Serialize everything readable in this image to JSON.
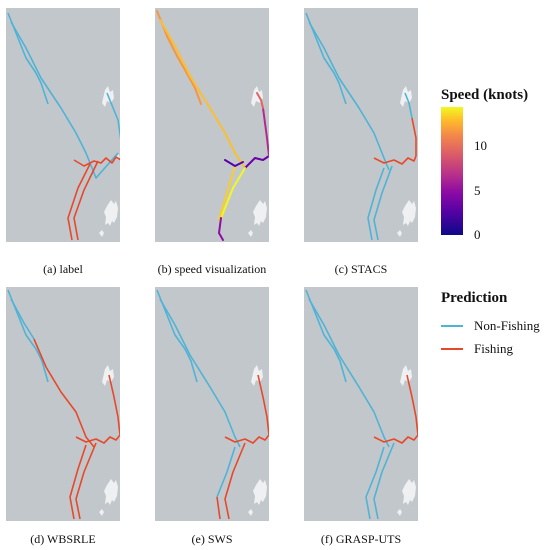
{
  "captions": {
    "a": "(a) label",
    "b": "(b) speed visualization",
    "c": "(c) STACS",
    "d": "(d) WBSRLE",
    "e": "(e) SWS",
    "f": "(f) GRASP-UTS"
  },
  "speed_legend": {
    "title": "Speed (knots)",
    "ticks": [
      "10",
      "5",
      "0"
    ],
    "colormap": "plasma"
  },
  "prediction_legend": {
    "title": "Prediction",
    "items": [
      {
        "label": "Non-Fishing",
        "color": "#4fb3d6"
      },
      {
        "label": "Fishing",
        "color": "#e8482a"
      }
    ]
  },
  "colors": {
    "background": "#c2c7cb",
    "land": "#eef0f2",
    "non_fishing": "#4fb3d6",
    "fishing": "#e8482a"
  }
}
